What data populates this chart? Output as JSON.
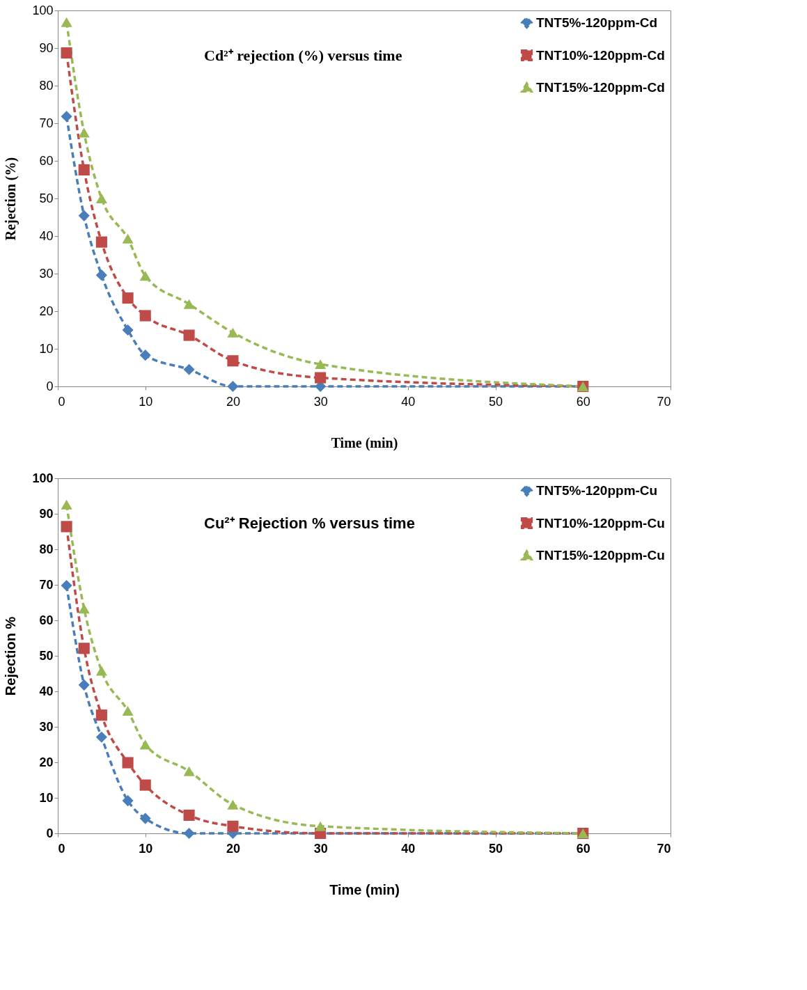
{
  "chart_data": [
    {
      "type": "line",
      "title": "Cd²⁺ rejection (%) versus time",
      "xlabel": "Time (min)",
      "ylabel": "Rejection (%)",
      "x": [
        1,
        3,
        5,
        8,
        10,
        15,
        20,
        30,
        60
      ],
      "xlim": [
        0,
        70
      ],
      "xticks": [
        0,
        10,
        20,
        30,
        40,
        50,
        60,
        70
      ],
      "ylim": [
        0,
        100
      ],
      "yticks": [
        0,
        10,
        20,
        30,
        40,
        50,
        60,
        70,
        80,
        90,
        100
      ],
      "grid": false,
      "legend": "right",
      "line_style": "dashed",
      "series": [
        {
          "name": "TNT5%-120ppm-Cd",
          "color": "#4a7ebb",
          "marker": "diamond",
          "values": [
            71.8,
            45.4,
            29.6,
            15,
            8.3,
            4.5,
            0,
            0,
            0
          ]
        },
        {
          "name": "TNT10%-120ppm-Cd",
          "color": "#be4b48",
          "marker": "square",
          "values": [
            88.7,
            57.6,
            38.4,
            23.5,
            18.8,
            13.6,
            6.8,
            2.3,
            0
          ]
        },
        {
          "name": "TNT15%-120ppm-Cd",
          "color": "#98b954",
          "marker": "triangle",
          "values": [
            96.9,
            67.5,
            50,
            39.3,
            29.4,
            21.9,
            14.3,
            5.9,
            0
          ]
        }
      ]
    },
    {
      "type": "line",
      "title": "Cu²⁺ Rejection % versus time",
      "xlabel": "Time (min)",
      "ylabel": "Rejection %",
      "x": [
        1,
        3,
        5,
        8,
        10,
        15,
        20,
        30,
        60
      ],
      "xlim": [
        0,
        70
      ],
      "xticks": [
        0,
        10,
        20,
        30,
        40,
        50,
        60,
        70
      ],
      "ylim": [
        0,
        100
      ],
      "yticks": [
        0,
        10,
        20,
        30,
        40,
        50,
        60,
        70,
        80,
        90,
        100
      ],
      "grid": false,
      "legend": "right",
      "line_style": "dashed",
      "series": [
        {
          "name": "TNT5%-120ppm-Cu",
          "color": "#4a7ebb",
          "marker": "diamond",
          "values": [
            69.8,
            41.8,
            27.1,
            9.2,
            4.2,
            0,
            0,
            0,
            0
          ]
        },
        {
          "name": "TNT10%-120ppm-Cu",
          "color": "#be4b48",
          "marker": "square",
          "values": [
            86.4,
            52.1,
            33.3,
            19.9,
            13.6,
            5.1,
            2,
            0,
            0
          ]
        },
        {
          "name": "TNT15%-120ppm-Cu",
          "color": "#98b954",
          "marker": "triangle",
          "values": [
            92.6,
            63.3,
            45.8,
            34.5,
            25,
            17.5,
            8.1,
            2,
            0
          ]
        }
      ]
    }
  ]
}
